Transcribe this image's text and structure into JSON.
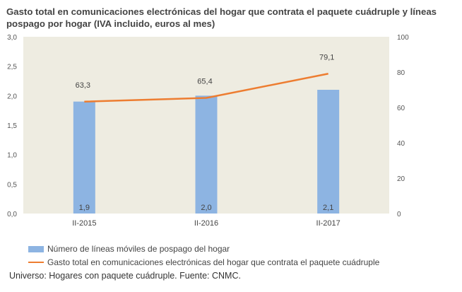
{
  "title": "Gasto total en comunicaciones electrónicas del hogar que contrata el paquete cuádruple y líneas pospago por hogar (IVA incluido, euros al mes)",
  "source": "Universo: Hogares con paquete cuádruple. Fuente: CNMC.",
  "chart_data": {
    "type": "bar",
    "categories": [
      "II-2015",
      "II-2016",
      "II-2017"
    ],
    "series": [
      {
        "name": "Número de líneas móviles de pospago del hogar",
        "type": "bar",
        "axis": "left",
        "values": [
          1.9,
          2.0,
          2.1
        ],
        "labels": [
          "1,9",
          "2,0",
          "2,1"
        ],
        "color": "#8DB4E2"
      },
      {
        "name": "Gasto total en comunicaciones electrónicas del hogar que contrata el paquete cuádruple",
        "type": "line",
        "axis": "right",
        "values": [
          63.3,
          65.4,
          79.1
        ],
        "labels": [
          "63,3",
          "65,4",
          "79,1"
        ],
        "color": "#ED7D31"
      }
    ],
    "y_left": {
      "ylim": [
        0,
        3
      ],
      "ticks": [
        "0,0",
        "0,5",
        "1,0",
        "1,5",
        "2,0",
        "2,5",
        "3,0"
      ]
    },
    "y_right": {
      "ylim": [
        0,
        100
      ],
      "ticks": [
        "0",
        "20",
        "40",
        "60",
        "80",
        "100"
      ]
    },
    "plot_background": "#EEECE1",
    "legend_position": "bottom-left"
  }
}
